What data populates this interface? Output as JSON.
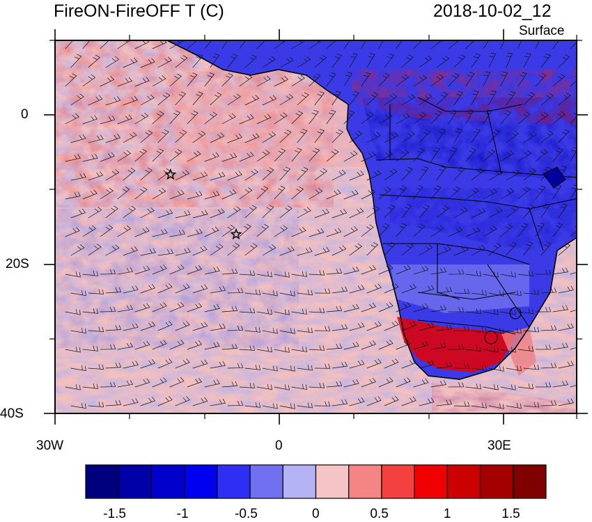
{
  "header": {
    "title_left": "FireON-FireOFF T (C)",
    "title_right": "2018-10-02_12",
    "subtitle": "Surface"
  },
  "map": {
    "lon_range": [
      -30,
      40
    ],
    "lat_range": [
      -40,
      10
    ],
    "lon_ticks": [
      "30W",
      "0",
      "30E"
    ],
    "lat_ticks": [
      "0",
      "20S",
      "40S"
    ],
    "markers": [
      {
        "type": "star",
        "lon": -14.5,
        "lat": -8.0
      },
      {
        "type": "star",
        "lon": -5.7,
        "lat": -16.0
      }
    ]
  },
  "colorbar": {
    "colors": [
      "#00007f",
      "#0000a8",
      "#0000cc",
      "#0000f0",
      "#2e2ef5",
      "#7070f0",
      "#b3b3f5",
      "#f5c4c4",
      "#f58484",
      "#f54040",
      "#f00000",
      "#cc0000",
      "#a50000",
      "#800000"
    ],
    "labels": [
      "-1.5",
      "-1",
      "-0.5",
      "0",
      "0.5",
      "1",
      "1.5"
    ]
  }
}
